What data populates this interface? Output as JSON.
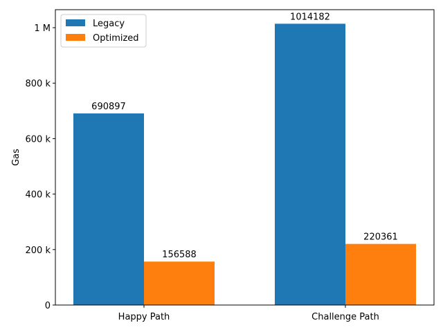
{
  "chart_data": {
    "type": "bar",
    "categories": [
      "Happy Path",
      "Challenge Path"
    ],
    "series": [
      {
        "name": "Legacy",
        "values": [
          690897,
          1014182
        ],
        "color": "#1f77b4"
      },
      {
        "name": "Optimized",
        "values": [
          156588,
          220361
        ],
        "color": "#ff7f0e"
      }
    ],
    "title": "",
    "xlabel": "",
    "ylabel": "Gas",
    "ylim": [
      0,
      1064891
    ],
    "yticks": [
      {
        "value": 0,
        "label": "0"
      },
      {
        "value": 200000,
        "label": "200 k"
      },
      {
        "value": 400000,
        "label": "400 k"
      },
      {
        "value": 600000,
        "label": "600 k"
      },
      {
        "value": 800000,
        "label": "800 k"
      },
      {
        "value": 1000000,
        "label": "1 M"
      }
    ],
    "grid": false,
    "legend_position": "top-left"
  }
}
